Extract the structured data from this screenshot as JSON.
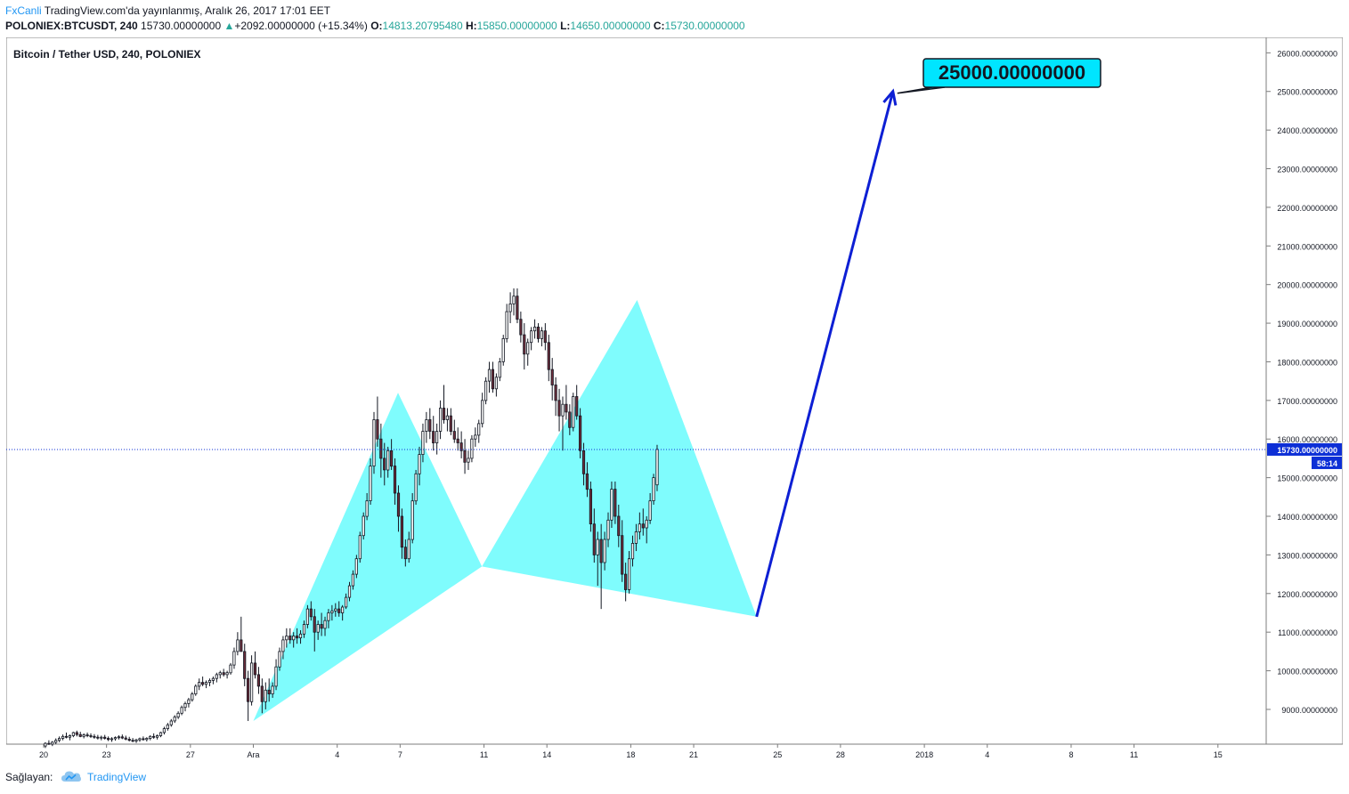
{
  "header": {
    "brand": "FxCanli",
    "published": " TradingView.com'da yayınlanmış, Aralık 26, 2017 17:01 EET",
    "symbol": "POLONIEX:BTCUSDT, 240",
    "price": "15730.00000000",
    "change": "+2092.00000000 (+15.34%)",
    "open_label": "O:",
    "open": "14813.20795480",
    "high_label": "H:",
    "high": "15850.00000000",
    "low_label": "L:",
    "low": "14650.00000000",
    "close_label": "C:",
    "close": "15730.00000000"
  },
  "footer": {
    "provider_label": "Sağlayan:",
    "provider_name": "TradingView"
  },
  "colors": {
    "up": "#ffffff",
    "down": "#6b2d3a",
    "wick": "#131722",
    "pattern_fill": "#7ffcfd",
    "arrow": "#0d1fd4",
    "target_bg": "#00e5ff",
    "price_tag": "#0d2fd6"
  },
  "chart_data": {
    "type": "candlestick",
    "title": "Bitcoin / Tether USD, 240, POLONIEX",
    "ylim": [
      8100,
      26400
    ],
    "y_ticks": [
      9000,
      10000,
      11000,
      12000,
      13000,
      14000,
      15000,
      16000,
      17000,
      18000,
      19000,
      20000,
      21000,
      22000,
      23000,
      24000,
      25000,
      26000
    ],
    "y_tick_labels": [
      "9000.00000000",
      "10000.00000000",
      "11000.00000000",
      "12000.00000000",
      "13000.00000000",
      "14000.00000000",
      "15000.00000000",
      "16000.00000000",
      "17000.00000000",
      "18000.00000000",
      "19000.00000000",
      "20000.00000000",
      "21000.00000000",
      "22000.00000000",
      "23000.00000000",
      "24000.00000000",
      "25000.00000000",
      "26000.00000000"
    ],
    "x_axis": {
      "labels": [
        "20",
        "23",
        "27",
        "Ara",
        "4",
        "7",
        "11",
        "14",
        "18",
        "21",
        "25",
        "28",
        "2018",
        "4",
        "8",
        "11",
        "15"
      ],
      "label_days": [
        0,
        3,
        7,
        10,
        14,
        17,
        21,
        24,
        28,
        31,
        35,
        38,
        42,
        45,
        49,
        52,
        56
      ]
    },
    "candles_day0": "20",
    "candles_step_days": 0.1667,
    "candles": [
      [
        8050,
        8150,
        8000,
        8120
      ],
      [
        8120,
        8200,
        8080,
        8100
      ],
      [
        8100,
        8180,
        8050,
        8150
      ],
      [
        8150,
        8250,
        8100,
        8200
      ],
      [
        8200,
        8300,
        8150,
        8250
      ],
      [
        8250,
        8350,
        8200,
        8300
      ],
      [
        8300,
        8400,
        8250,
        8280
      ],
      [
        8280,
        8350,
        8200,
        8320
      ],
      [
        8320,
        8420,
        8280,
        8400
      ],
      [
        8400,
        8450,
        8300,
        8350
      ],
      [
        8350,
        8420,
        8280,
        8300
      ],
      [
        8300,
        8380,
        8250,
        8340
      ],
      [
        8340,
        8400,
        8280,
        8320
      ],
      [
        8320,
        8380,
        8260,
        8300
      ],
      [
        8300,
        8360,
        8240,
        8280
      ],
      [
        8280,
        8340,
        8220,
        8260
      ],
      [
        8260,
        8320,
        8200,
        8280
      ],
      [
        8280,
        8340,
        8220,
        8250
      ],
      [
        8250,
        8300,
        8180,
        8220
      ],
      [
        8220,
        8280,
        8160,
        8240
      ],
      [
        8240,
        8300,
        8190,
        8270
      ],
      [
        8270,
        8330,
        8220,
        8290
      ],
      [
        8290,
        8350,
        8230,
        8260
      ],
      [
        8260,
        8320,
        8200,
        8230
      ],
      [
        8230,
        8290,
        8170,
        8200
      ],
      [
        8200,
        8260,
        8150,
        8180
      ],
      [
        8180,
        8240,
        8130,
        8210
      ],
      [
        8210,
        8270,
        8160,
        8240
      ],
      [
        8240,
        8300,
        8190,
        8220
      ],
      [
        8220,
        8280,
        8170,
        8250
      ],
      [
        8250,
        8330,
        8200,
        8300
      ],
      [
        8300,
        8380,
        8240,
        8280
      ],
      [
        8280,
        8350,
        8220,
        8320
      ],
      [
        8320,
        8420,
        8280,
        8400
      ],
      [
        8400,
        8550,
        8350,
        8500
      ],
      [
        8500,
        8650,
        8450,
        8600
      ],
      [
        8600,
        8750,
        8550,
        8700
      ],
      [
        8700,
        8850,
        8650,
        8800
      ],
      [
        8800,
        8950,
        8750,
        8900
      ],
      [
        8900,
        9100,
        8850,
        9050
      ],
      [
        9050,
        9200,
        8950,
        9150
      ],
      [
        9150,
        9300,
        9050,
        9250
      ],
      [
        9250,
        9450,
        9200,
        9400
      ],
      [
        9400,
        9650,
        9350,
        9600
      ],
      [
        9600,
        9800,
        9500,
        9700
      ],
      [
        9700,
        9850,
        9600,
        9650
      ],
      [
        9650,
        9750,
        9550,
        9700
      ],
      [
        9700,
        9800,
        9600,
        9750
      ],
      [
        9750,
        9850,
        9650,
        9800
      ],
      [
        9800,
        9950,
        9700,
        9900
      ],
      [
        9900,
        10000,
        9800,
        9950
      ],
      [
        9950,
        10050,
        9850,
        9900
      ],
      [
        9900,
        10000,
        9800,
        9950
      ],
      [
        9950,
        10200,
        9900,
        10150
      ],
      [
        10150,
        10600,
        10050,
        10500
      ],
      [
        10500,
        11000,
        10400,
        10800
      ],
      [
        10800,
        11400,
        10600,
        10500
      ],
      [
        10500,
        10700,
        9600,
        9800
      ],
      [
        9800,
        10000,
        8700,
        9200
      ],
      [
        9200,
        10400,
        9100,
        10200
      ],
      [
        10200,
        10500,
        9800,
        9900
      ],
      [
        9900,
        10100,
        9400,
        9600
      ],
      [
        9600,
        9800,
        8900,
        9200
      ],
      [
        9200,
        9700,
        9000,
        9500
      ],
      [
        9500,
        9800,
        9200,
        9400
      ],
      [
        9400,
        9700,
        9300,
        9600
      ],
      [
        9600,
        10300,
        9500,
        10100
      ],
      [
        10100,
        10600,
        10000,
        10500
      ],
      [
        10500,
        10900,
        10300,
        10800
      ],
      [
        10800,
        11100,
        10600,
        10900
      ],
      [
        10900,
        11100,
        10700,
        10800
      ],
      [
        10800,
        11000,
        10600,
        10900
      ],
      [
        10900,
        11100,
        10700,
        10850
      ],
      [
        10850,
        11050,
        10700,
        10950
      ],
      [
        10950,
        11300,
        10850,
        11200
      ],
      [
        11200,
        11700,
        11100,
        11600
      ],
      [
        11600,
        11800,
        11300,
        11400
      ],
      [
        11400,
        11600,
        10500,
        11000
      ],
      [
        11000,
        11300,
        10800,
        11200
      ],
      [
        11200,
        11500,
        10900,
        11100
      ],
      [
        11100,
        11400,
        10900,
        11300
      ],
      [
        11300,
        11600,
        11100,
        11500
      ],
      [
        11500,
        11700,
        11300,
        11550
      ],
      [
        11550,
        11750,
        11400,
        11600
      ],
      [
        11600,
        11800,
        11400,
        11500
      ],
      [
        11500,
        11700,
        11300,
        11650
      ],
      [
        11650,
        12000,
        11600,
        11900
      ],
      [
        11900,
        12300,
        11800,
        12200
      ],
      [
        12200,
        12600,
        12100,
        12500
      ],
      [
        12500,
        13000,
        12400,
        12900
      ],
      [
        12900,
        13600,
        12800,
        13500
      ],
      [
        13500,
        14100,
        13400,
        14000
      ],
      [
        14000,
        14600,
        13900,
        14400
      ],
      [
        14400,
        15500,
        14300,
        15300
      ],
      [
        15300,
        16700,
        15100,
        16500
      ],
      [
        16500,
        17100,
        15800,
        16000
      ],
      [
        16000,
        16400,
        15000,
        15500
      ],
      [
        15500,
        15900,
        14800,
        15200
      ],
      [
        15200,
        15800,
        15000,
        15700
      ],
      [
        15700,
        16000,
        15200,
        15300
      ],
      [
        15300,
        15500,
        14300,
        14600
      ],
      [
        14600,
        14800,
        13600,
        14000
      ],
      [
        14000,
        14200,
        12900,
        13200
      ],
      [
        13200,
        13400,
        12700,
        12900
      ],
      [
        12900,
        13600,
        12800,
        13400
      ],
      [
        13400,
        14600,
        13300,
        14400
      ],
      [
        14400,
        15200,
        14300,
        15100
      ],
      [
        15100,
        15800,
        14800,
        15600
      ],
      [
        15600,
        16400,
        15400,
        16200
      ],
      [
        16200,
        16700,
        15900,
        16500
      ],
      [
        16500,
        16800,
        16000,
        16200
      ],
      [
        16200,
        16600,
        15700,
        15900
      ],
      [
        15900,
        16400,
        15600,
        16200
      ],
      [
        16200,
        17000,
        16000,
        16800
      ],
      [
        16800,
        17400,
        16400,
        16500
      ],
      [
        16500,
        16800,
        16200,
        16600
      ],
      [
        16600,
        16800,
        16100,
        16200
      ],
      [
        16200,
        16500,
        15900,
        16000
      ],
      [
        16000,
        16300,
        15700,
        15900
      ],
      [
        15900,
        16200,
        15500,
        15700
      ],
      [
        15700,
        16000,
        15100,
        15400
      ],
      [
        15400,
        15700,
        15200,
        15500
      ],
      [
        15500,
        16100,
        15400,
        16000
      ],
      [
        16000,
        16300,
        15800,
        16100
      ],
      [
        16100,
        16500,
        15900,
        16400
      ],
      [
        16400,
        17200,
        16300,
        17000
      ],
      [
        17000,
        17600,
        16900,
        17500
      ],
      [
        17500,
        18000,
        17200,
        17800
      ],
      [
        17800,
        18000,
        17200,
        17300
      ],
      [
        17300,
        17700,
        17100,
        17600
      ],
      [
        17600,
        18100,
        17500,
        18000
      ],
      [
        18000,
        18700,
        17900,
        18600
      ],
      [
        18600,
        19500,
        18500,
        19300
      ],
      [
        19300,
        19800,
        19000,
        19500
      ],
      [
        19500,
        19900,
        19200,
        19700
      ],
      [
        19700,
        19900,
        19000,
        19100
      ],
      [
        19100,
        19300,
        18500,
        18700
      ],
      [
        18700,
        19000,
        17800,
        18200
      ],
      [
        18200,
        18600,
        17900,
        18500
      ],
      [
        18500,
        18900,
        18300,
        18800
      ],
      [
        18800,
        19100,
        18600,
        18900
      ],
      [
        18900,
        19000,
        18500,
        18600
      ],
      [
        18600,
        18900,
        18400,
        18800
      ],
      [
        18800,
        19000,
        18300,
        18500
      ],
      [
        18500,
        18700,
        17500,
        17800
      ],
      [
        17800,
        18100,
        17000,
        17400
      ],
      [
        17400,
        17600,
        16600,
        17000
      ],
      [
        17000,
        17300,
        16200,
        16600
      ],
      [
        16600,
        17100,
        15700,
        16900
      ],
      [
        16900,
        17400,
        16500,
        16700
      ],
      [
        16700,
        16900,
        16100,
        16300
      ],
      [
        16300,
        17200,
        16200,
        17100
      ],
      [
        17100,
        17400,
        16500,
        16600
      ],
      [
        16600,
        16800,
        15500,
        15700
      ],
      [
        15700,
        15900,
        14800,
        15100
      ],
      [
        15100,
        15400,
        14500,
        14700
      ],
      [
        14700,
        14900,
        13600,
        13800
      ],
      [
        13800,
        14200,
        12800,
        13000
      ],
      [
        13000,
        13600,
        12200,
        13400
      ],
      [
        13400,
        13800,
        11600,
        12800
      ],
      [
        12800,
        13600,
        12600,
        13400
      ],
      [
        13400,
        14100,
        13200,
        13900
      ],
      [
        13900,
        14900,
        13700,
        14700
      ],
      [
        14700,
        14900,
        13800,
        14000
      ],
      [
        14000,
        14300,
        13200,
        13500
      ],
      [
        13500,
        13900,
        12300,
        12500
      ],
      [
        12500,
        12800,
        11800,
        12100
      ],
      [
        12100,
        13100,
        12000,
        12900
      ],
      [
        12900,
        13500,
        12700,
        13300
      ],
      [
        13300,
        13800,
        13100,
        13600
      ],
      [
        13600,
        14100,
        13400,
        13800
      ],
      [
        13800,
        14200,
        13500,
        13700
      ],
      [
        13700,
        14000,
        13300,
        13900
      ],
      [
        13900,
        14600,
        13800,
        14400
      ],
      [
        14400,
        15100,
        14300,
        15000
      ],
      [
        14813,
        15850,
        14650,
        15730
      ]
    ],
    "pattern_points": [
      {
        "day": 10.0,
        "value": 8700
      },
      {
        "day": 16.9,
        "value": 17200
      },
      {
        "day": 20.9,
        "value": 12700
      },
      {
        "day": 28.3,
        "value": 19600
      },
      {
        "day": 34.0,
        "value": 11400
      }
    ],
    "projection": {
      "from_day": 34.0,
      "from_value": 11400,
      "to_day": 40.5,
      "to_value": 25000
    },
    "target_label": "25000.00000000",
    "current_price_label": "15730.00000000",
    "countdown": "58:14"
  }
}
